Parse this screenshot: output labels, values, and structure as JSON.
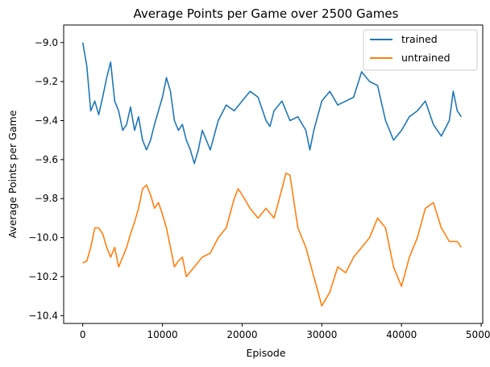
{
  "chart_data": {
    "type": "line",
    "title": "Average Points per Game over 2500 Games",
    "xlabel": "Episode",
    "ylabel": "Average Points per Game",
    "xlim": [
      -2400,
      50200
    ],
    "ylim": [
      -10.44,
      -8.91
    ],
    "xticks": [
      0,
      10000,
      20000,
      30000,
      40000,
      50000
    ],
    "xtick_labels": [
      "0",
      "10000",
      "20000",
      "30000",
      "40000",
      "50000"
    ],
    "yticks": [
      -9.0,
      -9.2,
      -9.4,
      -9.6,
      -9.8,
      -10.0,
      -10.2,
      -10.4
    ],
    "ytick_labels": [
      "−9.0",
      "−9.2",
      "−9.4",
      "−9.6",
      "−9.8",
      "−10.0",
      "−10.2",
      "−10.4"
    ],
    "grid": false,
    "legend_position": "top-right",
    "series": [
      {
        "name": "trained",
        "color": "#1f77b4",
        "x": [
          0,
          500,
          1000,
          1500,
          2000,
          2500,
          3000,
          3500,
          4000,
          4500,
          5000,
          5500,
          6000,
          6500,
          7000,
          7500,
          8000,
          8500,
          9000,
          9500,
          10000,
          10500,
          11000,
          11500,
          12000,
          12500,
          13000,
          13500,
          14000,
          14500,
          15000,
          15500,
          16000,
          17000,
          18000,
          19000,
          20000,
          21000,
          22000,
          23000,
          23500,
          24000,
          25000,
          26000,
          27000,
          28000,
          28500,
          29000,
          30000,
          31000,
          32000,
          33000,
          34000,
          35000,
          36000,
          37000,
          38000,
          39000,
          40000,
          41000,
          42000,
          43000,
          44000,
          45000,
          46000,
          46500,
          47000,
          47500
        ],
        "values": [
          -9.0,
          -9.12,
          -9.35,
          -9.3,
          -9.37,
          -9.28,
          -9.18,
          -9.1,
          -9.3,
          -9.35,
          -9.45,
          -9.42,
          -9.33,
          -9.45,
          -9.38,
          -9.5,
          -9.55,
          -9.5,
          -9.42,
          -9.35,
          -9.28,
          -9.18,
          -9.25,
          -9.4,
          -9.45,
          -9.42,
          -9.5,
          -9.55,
          -9.62,
          -9.55,
          -9.45,
          -9.5,
          -9.55,
          -9.4,
          -9.32,
          -9.35,
          -9.3,
          -9.25,
          -9.28,
          -9.4,
          -9.43,
          -9.35,
          -9.3,
          -9.4,
          -9.38,
          -9.45,
          -9.55,
          -9.45,
          -9.3,
          -9.25,
          -9.32,
          -9.3,
          -9.28,
          -9.15,
          -9.2,
          -9.22,
          -9.4,
          -9.5,
          -9.45,
          -9.38,
          -9.35,
          -9.3,
          -9.42,
          -9.48,
          -9.4,
          -9.25,
          -9.35,
          -9.38
        ]
      },
      {
        "name": "untrained",
        "color": "#ff7f0e",
        "x": [
          0,
          500,
          1000,
          1500,
          2000,
          2500,
          3000,
          3500,
          4000,
          4500,
          5000,
          5500,
          6000,
          6500,
          7000,
          7500,
          8000,
          8500,
          9000,
          9500,
          10000,
          10500,
          11000,
          11500,
          12000,
          12500,
          13000,
          14000,
          15000,
          16000,
          17000,
          18000,
          19000,
          19500,
          20000,
          21000,
          22000,
          23000,
          24000,
          25000,
          25500,
          26000,
          27000,
          28000,
          29000,
          30000,
          31000,
          32000,
          33000,
          34000,
          35000,
          36000,
          37000,
          38000,
          39000,
          40000,
          41000,
          42000,
          43000,
          44000,
          45000,
          46000,
          47000,
          47500
        ],
        "values": [
          -10.13,
          -10.12,
          -10.05,
          -9.95,
          -9.95,
          -9.98,
          -10.05,
          -10.1,
          -10.05,
          -10.15,
          -10.1,
          -10.05,
          -9.98,
          -9.92,
          -9.85,
          -9.75,
          -9.73,
          -9.78,
          -9.85,
          -9.82,
          -9.88,
          -9.95,
          -10.05,
          -10.15,
          -10.12,
          -10.1,
          -10.2,
          -10.15,
          -10.1,
          -10.08,
          -10.0,
          -9.95,
          -9.8,
          -9.75,
          -9.78,
          -9.85,
          -9.9,
          -9.85,
          -9.9,
          -9.75,
          -9.67,
          -9.68,
          -9.95,
          -10.05,
          -10.2,
          -10.35,
          -10.28,
          -10.15,
          -10.18,
          -10.1,
          -10.05,
          -10.0,
          -9.9,
          -9.95,
          -10.15,
          -10.25,
          -10.1,
          -10.0,
          -9.85,
          -9.82,
          -9.95,
          -10.02,
          -10.02,
          -10.05
        ]
      }
    ]
  }
}
